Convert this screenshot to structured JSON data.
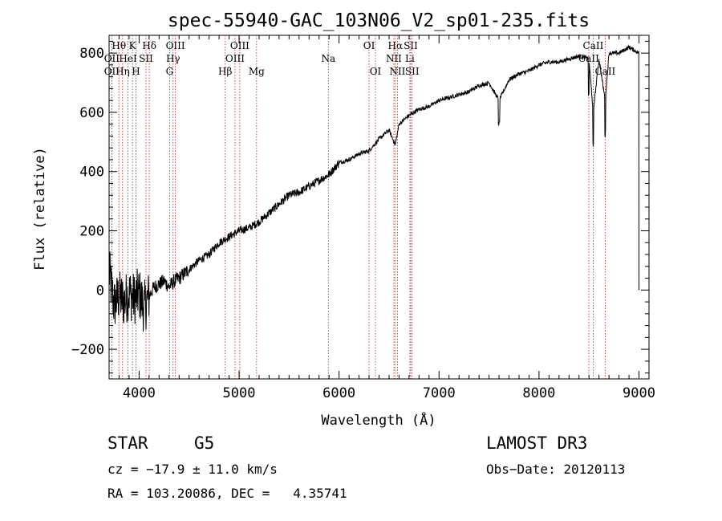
{
  "chart_data": {
    "type": "line",
    "title": "spec-55940-GAC_103N06_V2_sp01-235.fits",
    "xlabel": "Wavelength (Å)",
    "ylabel": "Flux (relative)",
    "xlim": [
      3700,
      9100
    ],
    "ylim": [
      -300,
      860
    ],
    "xticks": [
      4000,
      5000,
      6000,
      7000,
      8000,
      9000
    ],
    "yticks": [
      -200,
      0,
      200,
      400,
      600,
      800
    ],
    "series": [
      {
        "name": "flux",
        "color": "#000000",
        "x": [
          3700,
          3750,
          3800,
          3850,
          3900,
          3950,
          4000,
          4050,
          4100,
          4150,
          4200,
          4250,
          4300,
          4350,
          4400,
          4500,
          4600,
          4700,
          4800,
          4900,
          5000,
          5100,
          5200,
          5300,
          5400,
          5500,
          5600,
          5700,
          5800,
          5900,
          6000,
          6100,
          6200,
          6300,
          6400,
          6500,
          6562,
          6600,
          6700,
          6800,
          6900,
          7000,
          7100,
          7200,
          7300,
          7400,
          7500,
          7600,
          7700,
          7800,
          7900,
          8000,
          8100,
          8200,
          8300,
          8400,
          8500,
          8542,
          8600,
          8662,
          8700,
          8800,
          8900,
          9000
        ],
        "y": [
          60,
          -50,
          -20,
          -40,
          -10,
          -30,
          -10,
          -60,
          -20,
          10,
          20,
          30,
          10,
          30,
          40,
          70,
          100,
          120,
          160,
          180,
          200,
          210,
          230,
          260,
          290,
          320,
          330,
          350,
          370,
          390,
          430,
          440,
          460,
          470,
          510,
          540,
          490,
          560,
          590,
          610,
          620,
          640,
          650,
          660,
          670,
          690,
          700,
          640,
          710,
          730,
          740,
          760,
          770,
          770,
          780,
          790,
          780,
          600,
          780,
          640,
          800,
          800,
          820,
          800
        ]
      }
    ],
    "line_marks": [
      {
        "label": "Hθ",
        "wl": 3798,
        "row": 1
      },
      {
        "label": "OII",
        "wl": 3727,
        "row": 2
      },
      {
        "label": "OII",
        "wl": 3727,
        "row": 3
      },
      {
        "label": "Hη",
        "wl": 3835,
        "row": 3
      },
      {
        "label": "K",
        "wl": 3934,
        "row": 1
      },
      {
        "label": "HeI",
        "wl": 3889,
        "row": 2
      },
      {
        "label": "H",
        "wl": 3969,
        "row": 3
      },
      {
        "label": "SII",
        "wl": 4069,
        "row": 2
      },
      {
        "label": "Hδ",
        "wl": 4102,
        "row": 1
      },
      {
        "label": "OIII",
        "wl": 4363,
        "row": 1
      },
      {
        "label": "Hγ",
        "wl": 4340,
        "row": 2
      },
      {
        "label": "G",
        "wl": 4305,
        "row": 3
      },
      {
        "label": "Hβ",
        "wl": 4861,
        "row": 3
      },
      {
        "label": "OIII",
        "wl": 4959,
        "row": 2
      },
      {
        "label": "OIII",
        "wl": 5007,
        "row": 1
      },
      {
        "label": "Mg",
        "wl": 5175,
        "row": 3
      },
      {
        "label": "Na",
        "wl": 5893,
        "row": 2
      },
      {
        "label": "OI",
        "wl": 6300,
        "row": 1
      },
      {
        "label": "OI",
        "wl": 6364,
        "row": 3
      },
      {
        "label": "Hα",
        "wl": 6563,
        "row": 1
      },
      {
        "label": "NII",
        "wl": 6548,
        "row": 2
      },
      {
        "label": "NII",
        "wl": 6584,
        "row": 3
      },
      {
        "label": "SII",
        "wl": 6717,
        "row": 1
      },
      {
        "label": "Li",
        "wl": 6708,
        "row": 2
      },
      {
        "label": "SII",
        "wl": 6731,
        "row": 3
      },
      {
        "label": "CaII",
        "wl": 8542,
        "row": 1
      },
      {
        "label": "CaII",
        "wl": 8498,
        "row": 2
      },
      {
        "label": "CaII",
        "wl": 8662,
        "row": 3
      }
    ]
  },
  "info": {
    "class": "STAR",
    "subclass": "G5",
    "survey": "LAMOST DR3",
    "cz": "cz = −17.9 ± 11.0 km/s",
    "obs_date": "Obs−Date: 20120113",
    "radec": "RA = 103.20086, DEC =   4.35741"
  }
}
